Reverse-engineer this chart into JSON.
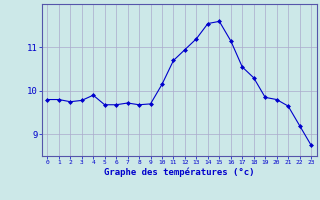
{
  "x": [
    0,
    1,
    2,
    3,
    4,
    5,
    6,
    7,
    8,
    9,
    10,
    11,
    12,
    13,
    14,
    15,
    16,
    17,
    18,
    19,
    20,
    21,
    22,
    23
  ],
  "y": [
    9.8,
    9.8,
    9.75,
    9.78,
    9.9,
    9.68,
    9.68,
    9.72,
    9.68,
    9.7,
    10.15,
    10.7,
    10.95,
    11.2,
    11.55,
    11.6,
    11.15,
    10.55,
    10.3,
    9.85,
    9.8,
    9.65,
    9.2,
    8.75
  ],
  "line_color": "#0000cc",
  "marker": "D",
  "marker_size": 2.0,
  "bg_color": "#cce8e8",
  "grid_color": "#aaaacc",
  "xlabel": "Graphe des températures (°c)",
  "xlabel_color": "#0000cc",
  "tick_color": "#0000cc",
  "ylim": [
    8.5,
    12.0
  ],
  "yticks": [
    9,
    10,
    11
  ],
  "xlim": [
    -0.5,
    23.5
  ],
  "xticks": [
    0,
    1,
    2,
    3,
    4,
    5,
    6,
    7,
    8,
    9,
    10,
    11,
    12,
    13,
    14,
    15,
    16,
    17,
    18,
    19,
    20,
    21,
    22,
    23
  ],
  "xtick_labels": [
    "0",
    "1",
    "2",
    "3",
    "4",
    "5",
    "6",
    "7",
    "8",
    "9",
    "10",
    "11",
    "12",
    "13",
    "14",
    "15",
    "16",
    "17",
    "18",
    "19",
    "20",
    "21",
    "22",
    "23"
  ]
}
